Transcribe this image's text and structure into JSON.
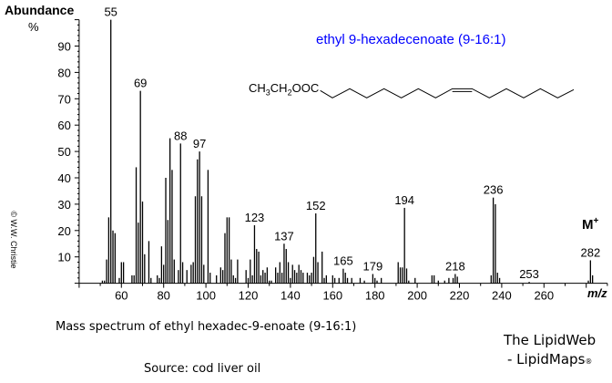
{
  "chart_data": {
    "type": "bar",
    "title": "ethyl 9-hexadecenoate  (9-16:1)",
    "title_color": "#0000ff",
    "ylabel": "Abundance",
    "ylabel_unit": "%",
    "xlabel": "m/z",
    "xlim": [
      40,
      290
    ],
    "ylim": [
      0,
      100
    ],
    "x_ticks": [
      60,
      80,
      100,
      120,
      140,
      160,
      180,
      200,
      220,
      240,
      260
    ],
    "y_ticks": [
      10,
      20,
      30,
      40,
      50,
      60,
      70,
      80,
      90
    ],
    "grid": false,
    "molecular_ion_label": "M",
    "molecular_ion_sup": "+",
    "peak_labels": [
      55,
      69,
      88,
      97,
      123,
      137,
      152,
      165,
      179,
      194,
      218,
      236,
      253,
      282
    ],
    "peaks": [
      [
        51,
        1
      ],
      [
        52,
        1
      ],
      [
        53,
        9
      ],
      [
        54,
        25
      ],
      [
        55,
        100
      ],
      [
        56,
        20
      ],
      [
        57,
        19
      ],
      [
        59,
        2
      ],
      [
        60,
        8
      ],
      [
        61,
        8
      ],
      [
        65,
        3
      ],
      [
        66,
        3
      ],
      [
        67,
        44
      ],
      [
        68,
        23
      ],
      [
        69,
        73
      ],
      [
        70,
        31
      ],
      [
        71,
        11
      ],
      [
        73,
        16
      ],
      [
        74,
        2
      ],
      [
        77,
        3
      ],
      [
        78,
        2
      ],
      [
        79,
        14
      ],
      [
        80,
        7
      ],
      [
        81,
        40
      ],
      [
        82,
        24
      ],
      [
        83,
        55
      ],
      [
        84,
        43
      ],
      [
        85,
        9
      ],
      [
        87,
        5
      ],
      [
        88,
        53
      ],
      [
        89,
        8
      ],
      [
        91,
        5
      ],
      [
        93,
        7
      ],
      [
        94,
        8
      ],
      [
        95,
        33
      ],
      [
        96,
        47
      ],
      [
        97,
        50
      ],
      [
        98,
        33
      ],
      [
        99,
        7
      ],
      [
        101,
        43
      ],
      [
        102,
        4
      ],
      [
        105,
        3
      ],
      [
        107,
        6
      ],
      [
        108,
        5
      ],
      [
        109,
        19
      ],
      [
        110,
        25
      ],
      [
        111,
        25
      ],
      [
        112,
        9
      ],
      [
        113,
        3
      ],
      [
        114,
        2
      ],
      [
        115,
        9
      ],
      [
        119,
        5
      ],
      [
        120,
        2
      ],
      [
        121,
        9
      ],
      [
        122,
        3
      ],
      [
        123,
        22
      ],
      [
        124,
        13
      ],
      [
        125,
        12
      ],
      [
        126,
        3
      ],
      [
        127,
        5
      ],
      [
        128,
        4
      ],
      [
        129,
        6
      ],
      [
        130,
        1
      ],
      [
        131,
        1
      ],
      [
        133,
        6
      ],
      [
        134,
        4
      ],
      [
        135,
        8
      ],
      [
        136,
        4
      ],
      [
        137,
        15
      ],
      [
        138,
        13
      ],
      [
        139,
        8
      ],
      [
        140,
        2
      ],
      [
        141,
        7
      ],
      [
        142,
        5
      ],
      [
        143,
        4
      ],
      [
        144,
        7
      ],
      [
        145,
        5
      ],
      [
        146,
        4
      ],
      [
        148,
        4
      ],
      [
        149,
        3
      ],
      [
        150,
        4
      ],
      [
        151,
        10
      ],
      [
        152,
        26.5
      ],
      [
        153,
        8
      ],
      [
        155,
        12
      ],
      [
        156,
        2
      ],
      [
        157,
        3
      ],
      [
        160,
        3
      ],
      [
        161,
        2
      ],
      [
        163,
        2
      ],
      [
        165,
        5.5
      ],
      [
        166,
        4
      ],
      [
        167,
        2
      ],
      [
        169,
        2
      ],
      [
        173,
        2
      ],
      [
        175,
        1
      ],
      [
        179,
        3.5
      ],
      [
        180,
        2
      ],
      [
        181,
        1
      ],
      [
        183,
        2
      ],
      [
        191,
        8
      ],
      [
        192,
        6
      ],
      [
        193,
        6
      ],
      [
        194,
        28.6
      ],
      [
        195,
        5.6
      ],
      [
        196,
        1
      ],
      [
        199,
        2
      ],
      [
        207,
        3
      ],
      [
        208,
        3
      ],
      [
        210,
        1
      ],
      [
        213,
        1
      ],
      [
        215,
        2
      ],
      [
        217,
        2
      ],
      [
        218,
        3.5
      ],
      [
        219,
        2.5
      ],
      [
        235,
        3
      ],
      [
        236,
        32.5
      ],
      [
        237,
        30
      ],
      [
        238,
        4
      ],
      [
        239,
        2
      ],
      [
        253,
        0.5
      ],
      [
        281,
        1
      ],
      [
        282,
        8.7
      ],
      [
        283,
        3
      ]
    ]
  },
  "structure": {
    "p1": "CH",
    "s1": "3",
    "p2": "CH",
    "s2": "2",
    "p3": "OOC"
  },
  "copyright": "© W.W. Christie",
  "caption": "Mass spectrum of ethyl hexadec-9-enoate (9-16:1)",
  "source": "Source:  cod liver oil",
  "brand_line1": "The LipidWeb",
  "brand_line2": "- LipidMaps",
  "brand_mark": "®"
}
